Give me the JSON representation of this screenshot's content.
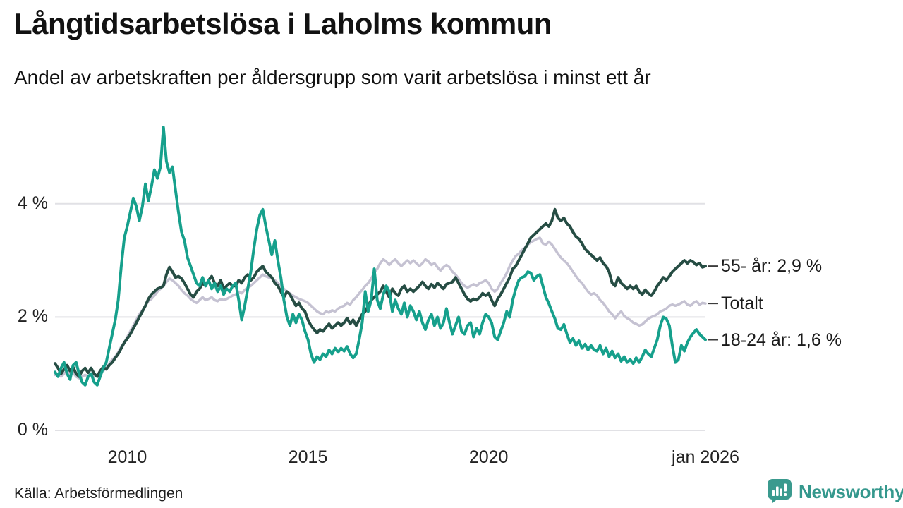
{
  "header": {
    "title": "Långtidsarbetslösa i Laholms kommun",
    "subtitle": "Andel av arbetskraften per åldersgrupp som varit arbetslösa i minst ett år"
  },
  "footer": {
    "source": "Källa: Arbetsförmedlingen",
    "brand": "Newsworthy",
    "brand_icon": "bar-chart-speech-bubble-icon",
    "brand_color": "#35988d"
  },
  "colors": {
    "series_55plus": "#264d44",
    "series_total": "#c5c2d2",
    "series_1824": "#16a08c",
    "gridline": "#e1e1e5",
    "label_dash": "#3c3c3c",
    "background": "#ffffff"
  },
  "chart_data": {
    "type": "line",
    "title": "Långtidsarbetslösa i Laholms kommun",
    "subtitle": "Andel av arbetskraften per åldersgrupp som varit arbetslösa i minst ett år",
    "unit": "% av arbetskraften",
    "grid": "horizontal",
    "legend_position": "right-of-line-ends",
    "x_axis": {
      "start": "jan 2008",
      "end": "jan 2026",
      "frequency": "monthly",
      "ticks": [
        {
          "t": 2010.0,
          "label": "2010"
        },
        {
          "t": 2015.0,
          "label": "2015"
        },
        {
          "t": 2020.0,
          "label": "2020"
        },
        {
          "t": 2026.0,
          "label": "jan 2026"
        }
      ]
    },
    "y_axis": {
      "range": [
        0,
        5.6
      ],
      "ticks": [
        {
          "value": 0,
          "label": "0 %"
        },
        {
          "value": 2,
          "label": "2 %"
        },
        {
          "value": 4,
          "label": "4 %"
        }
      ]
    },
    "series": [
      {
        "name": "Totalt",
        "end_label": "Totalt",
        "end_value": 2.24,
        "color": "#c5c2d2",
        "stroke_width": 3.5,
        "start_year": 2008,
        "monthly_values": [
          0.98,
          1.0,
          0.95,
          1.0,
          1.05,
          0.98,
          1.02,
          0.95,
          0.92,
          0.95,
          0.98,
          0.95,
          1.0,
          0.95,
          0.98,
          1.02,
          1.05,
          1.1,
          1.18,
          1.25,
          1.3,
          1.38,
          1.48,
          1.55,
          1.65,
          1.75,
          1.85,
          1.95,
          2.05,
          2.12,
          2.2,
          2.28,
          2.32,
          2.38,
          2.45,
          2.5,
          2.55,
          2.62,
          2.68,
          2.65,
          2.6,
          2.55,
          2.48,
          2.42,
          2.38,
          2.32,
          2.28,
          2.25,
          2.3,
          2.35,
          2.3,
          2.32,
          2.35,
          2.3,
          2.28,
          2.32,
          2.3,
          2.32,
          2.35,
          2.38,
          2.4,
          2.45,
          2.42,
          2.48,
          2.52,
          2.55,
          2.6,
          2.65,
          2.7,
          2.75,
          2.72,
          2.7,
          2.68,
          2.65,
          2.6,
          2.55,
          2.5,
          2.45,
          2.42,
          2.38,
          2.35,
          2.32,
          2.3,
          2.28,
          2.25,
          2.2,
          2.15,
          2.1,
          2.07,
          2.05,
          2.1,
          2.08,
          2.12,
          2.1,
          2.15,
          2.18,
          2.2,
          2.25,
          2.22,
          2.3,
          2.35,
          2.42,
          2.48,
          2.55,
          2.6,
          2.68,
          2.78,
          2.85,
          2.95,
          3.02,
          2.98,
          2.92,
          2.98,
          3.02,
          2.95,
          2.9,
          2.95,
          3.0,
          2.95,
          3.0,
          2.95,
          2.9,
          2.95,
          3.02,
          2.98,
          2.92,
          2.95,
          2.88,
          2.82,
          2.88,
          2.92,
          2.88,
          2.8,
          2.75,
          2.68,
          2.6,
          2.55,
          2.52,
          2.55,
          2.58,
          2.55,
          2.6,
          2.62,
          2.65,
          2.6,
          2.5,
          2.45,
          2.5,
          2.6,
          2.68,
          2.78,
          2.9,
          3.0,
          3.08,
          3.12,
          3.18,
          3.22,
          3.28,
          3.32,
          3.35,
          3.38,
          3.4,
          3.3,
          3.28,
          3.33,
          3.28,
          3.2,
          3.12,
          3.05,
          3.0,
          2.95,
          2.88,
          2.8,
          2.72,
          2.65,
          2.6,
          2.52,
          2.45,
          2.4,
          2.42,
          2.38,
          2.3,
          2.25,
          2.18,
          2.1,
          2.05,
          1.98,
          2.05,
          2.1,
          2.02,
          1.98,
          1.95,
          1.9,
          1.88,
          1.85,
          1.87,
          1.92,
          1.97,
          2.0,
          2.02,
          2.05,
          2.1,
          2.12,
          2.15,
          2.2,
          2.22,
          2.2,
          2.22,
          2.25,
          2.28,
          2.22,
          2.2,
          2.25,
          2.28,
          2.22,
          2.25,
          2.24
        ]
      },
      {
        "name": "55- år",
        "end_label": "55- år: 2,9 %",
        "end_value": 2.9,
        "color": "#264d44",
        "stroke_width": 4,
        "start_year": 2008,
        "monthly_values": [
          1.18,
          1.1,
          1.0,
          1.08,
          1.15,
          1.05,
          1.12,
          1.0,
          0.95,
          1.05,
          1.1,
          1.02,
          1.1,
          1.0,
          0.95,
          1.05,
          1.12,
          1.08,
          1.15,
          1.2,
          1.28,
          1.35,
          1.45,
          1.55,
          1.62,
          1.7,
          1.8,
          1.9,
          2.0,
          2.1,
          2.2,
          2.32,
          2.4,
          2.45,
          2.5,
          2.52,
          2.55,
          2.75,
          2.88,
          2.8,
          2.7,
          2.72,
          2.68,
          2.6,
          2.5,
          2.4,
          2.35,
          2.45,
          2.5,
          2.6,
          2.55,
          2.65,
          2.72,
          2.6,
          2.55,
          2.65,
          2.5,
          2.55,
          2.6,
          2.55,
          2.55,
          2.65,
          2.6,
          2.7,
          2.75,
          2.65,
          2.7,
          2.8,
          2.85,
          2.9,
          2.8,
          2.75,
          2.7,
          2.6,
          2.55,
          2.45,
          2.35,
          2.45,
          2.4,
          2.3,
          2.2,
          2.25,
          2.15,
          2.1,
          1.95,
          1.85,
          1.78,
          1.72,
          1.78,
          1.75,
          1.82,
          1.88,
          1.8,
          1.85,
          1.9,
          1.85,
          1.9,
          1.98,
          1.88,
          1.95,
          1.85,
          1.95,
          2.05,
          2.1,
          2.2,
          2.3,
          2.35,
          2.4,
          2.45,
          2.55,
          2.45,
          2.35,
          2.5,
          2.42,
          2.38,
          2.5,
          2.55,
          2.45,
          2.5,
          2.45,
          2.5,
          2.55,
          2.62,
          2.55,
          2.5,
          2.58,
          2.52,
          2.6,
          2.55,
          2.5,
          2.58,
          2.6,
          2.62,
          2.7,
          2.6,
          2.5,
          2.4,
          2.32,
          2.28,
          2.32,
          2.3,
          2.35,
          2.42,
          2.38,
          2.42,
          2.3,
          2.2,
          2.32,
          2.4,
          2.5,
          2.6,
          2.7,
          2.85,
          2.9,
          3.0,
          3.1,
          3.2,
          3.3,
          3.4,
          3.45,
          3.5,
          3.55,
          3.6,
          3.65,
          3.6,
          3.7,
          3.9,
          3.75,
          3.7,
          3.75,
          3.65,
          3.6,
          3.5,
          3.42,
          3.38,
          3.3,
          3.2,
          3.15,
          3.1,
          3.05,
          3.0,
          3.05,
          2.95,
          2.9,
          2.8,
          2.6,
          2.55,
          2.7,
          2.6,
          2.55,
          2.5,
          2.55,
          2.5,
          2.55,
          2.45,
          2.4,
          2.48,
          2.42,
          2.38,
          2.45,
          2.55,
          2.62,
          2.7,
          2.65,
          2.72,
          2.8,
          2.85,
          2.9,
          2.95,
          3.0,
          2.95,
          3.0,
          2.97,
          2.92,
          2.95,
          2.88,
          2.9
        ]
      },
      {
        "name": "18-24 år",
        "end_label": "18-24 år: 1,6 %",
        "end_value": 1.6,
        "color": "#16a08c",
        "stroke_width": 4,
        "start_year": 2008,
        "monthly_values": [
          1.03,
          0.95,
          1.1,
          1.2,
          1.0,
          0.9,
          1.15,
          1.2,
          1.0,
          0.85,
          0.8,
          0.95,
          1.0,
          0.85,
          0.8,
          0.95,
          1.1,
          1.2,
          1.45,
          1.7,
          1.95,
          2.3,
          2.9,
          3.4,
          3.6,
          3.85,
          4.1,
          3.95,
          3.7,
          3.95,
          4.35,
          4.05,
          4.3,
          4.6,
          4.45,
          4.65,
          5.35,
          4.75,
          4.55,
          4.65,
          4.25,
          3.85,
          3.5,
          3.35,
          3.05,
          2.9,
          2.75,
          2.6,
          2.55,
          2.7,
          2.55,
          2.65,
          2.5,
          2.6,
          2.45,
          2.55,
          2.4,
          2.5,
          2.45,
          2.55,
          2.6,
          2.3,
          1.95,
          2.2,
          2.5,
          2.8,
          3.2,
          3.55,
          3.8,
          3.9,
          3.6,
          3.35,
          3.1,
          3.35,
          3.0,
          2.7,
          2.3,
          2.0,
          1.85,
          2.05,
          1.9,
          2.05,
          1.95,
          1.75,
          1.6,
          1.35,
          1.2,
          1.3,
          1.25,
          1.35,
          1.3,
          1.42,
          1.35,
          1.45,
          1.38,
          1.45,
          1.4,
          1.48,
          1.35,
          1.28,
          1.35,
          1.6,
          1.9,
          2.45,
          2.1,
          2.3,
          2.85,
          2.3,
          2.15,
          2.4,
          2.55,
          2.45,
          2.1,
          2.3,
          2.15,
          2.05,
          2.25,
          2.0,
          2.2,
          2.1,
          1.95,
          2.1,
          1.9,
          1.78,
          1.95,
          2.05,
          1.85,
          2.0,
          1.8,
          1.9,
          2.15,
          1.9,
          1.7,
          1.85,
          2.0,
          1.75,
          1.7,
          1.85,
          1.9,
          1.65,
          1.8,
          1.7,
          1.9,
          2.05,
          2.0,
          1.9,
          1.65,
          1.6,
          1.75,
          1.9,
          2.1,
          2.0,
          2.3,
          2.5,
          2.65,
          2.7,
          2.72,
          2.8,
          2.78,
          2.65,
          2.72,
          2.75,
          2.55,
          2.35,
          2.24,
          2.1,
          1.97,
          1.8,
          1.78,
          1.87,
          1.7,
          1.55,
          1.62,
          1.5,
          1.58,
          1.45,
          1.52,
          1.42,
          1.5,
          1.42,
          1.4,
          1.5,
          1.35,
          1.45,
          1.3,
          1.4,
          1.28,
          1.35,
          1.22,
          1.3,
          1.2,
          1.25,
          1.18,
          1.28,
          1.2,
          1.3,
          1.42,
          1.35,
          1.3,
          1.45,
          1.6,
          1.85,
          2.0,
          1.97,
          1.85,
          1.5,
          1.2,
          1.25,
          1.5,
          1.4,
          1.55,
          1.65,
          1.72,
          1.78,
          1.7,
          1.65,
          1.6
        ]
      }
    ]
  }
}
